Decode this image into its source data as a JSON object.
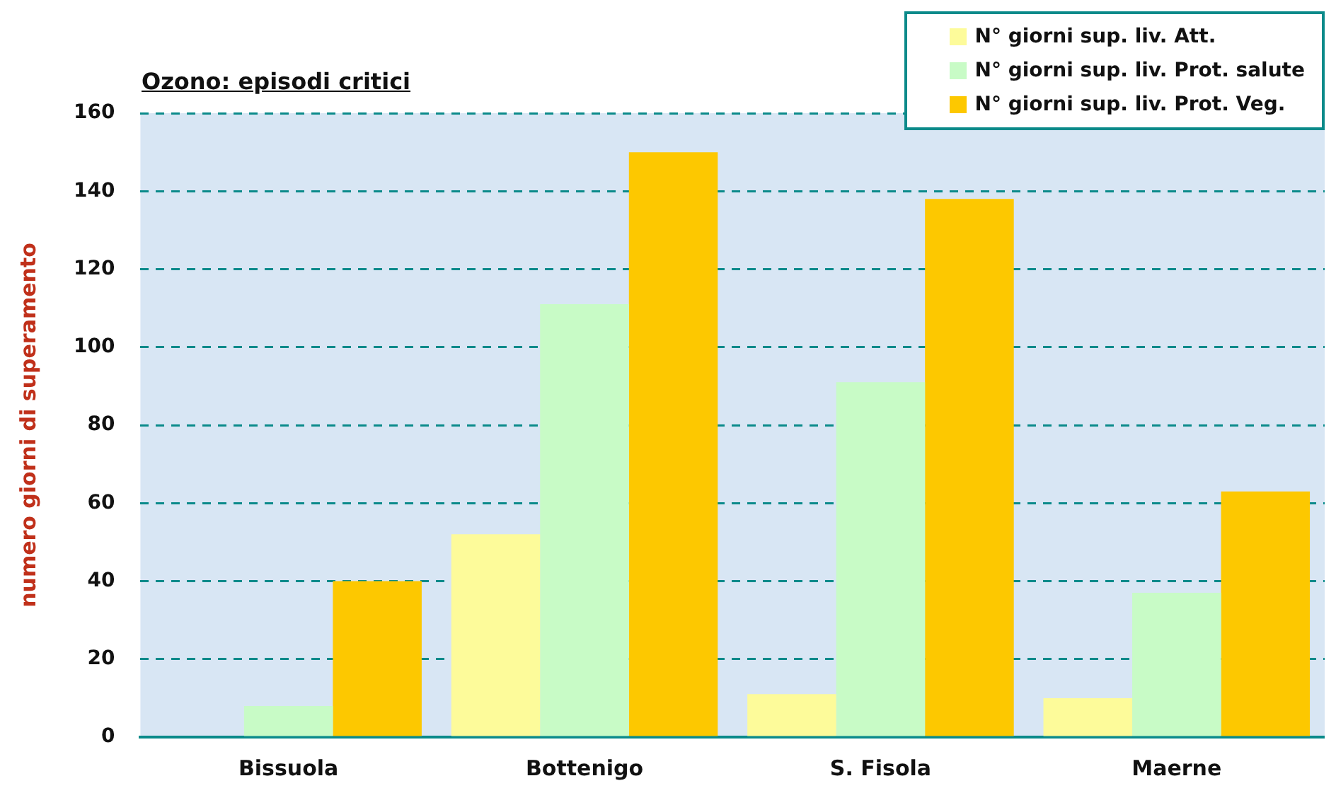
{
  "chart_data": {
    "type": "bar",
    "title": "Ozono: episodi critici",
    "ylabel": "numero giorni di superamento",
    "categories": [
      "Bissuola",
      "Bottenigo",
      "S. Fisola",
      "Maerne"
    ],
    "series": [
      {
        "name": "N° giorni sup. liv. Att.",
        "color": "#fdfb9a",
        "values": [
          0,
          52,
          11,
          10
        ]
      },
      {
        "name": "N° giorni sup. liv. Prot. salute",
        "color": "#c8fbc6",
        "values": [
          8,
          111,
          91,
          37
        ]
      },
      {
        "name": "N° giorni sup. liv. Prot. Veg.",
        "color": "#fdc800",
        "values": [
          40,
          150,
          138,
          63
        ]
      }
    ],
    "ylim": [
      0,
      160
    ],
    "yticks": [
      0,
      20,
      40,
      60,
      80,
      100,
      120,
      140,
      160
    ],
    "grid": "y",
    "legend": "top right"
  }
}
